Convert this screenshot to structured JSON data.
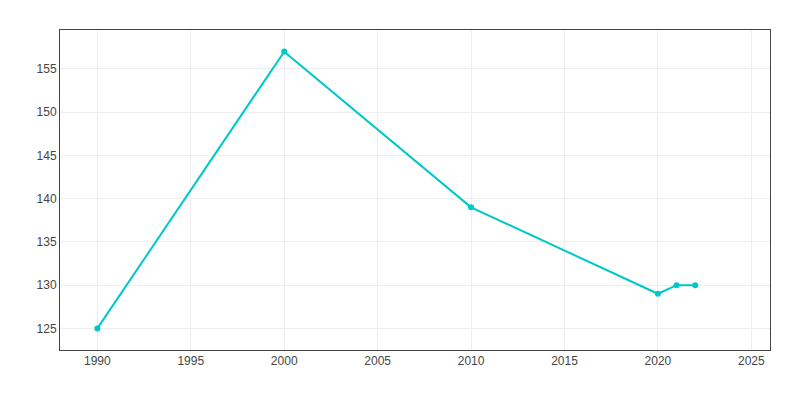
{
  "chart_data": {
    "type": "line",
    "x": [
      1990,
      2000,
      2010,
      2020,
      2021,
      2022
    ],
    "values": [
      125,
      157,
      139,
      129,
      130,
      130
    ],
    "color": "#00c8c8",
    "marker": "circle",
    "xlim": [
      1988,
      2026
    ],
    "ylim": [
      122.5,
      159.5
    ],
    "xticks": [
      1990,
      1995,
      2000,
      2005,
      2010,
      2015,
      2020,
      2025
    ],
    "yticks": [
      125,
      130,
      135,
      140,
      145,
      150,
      155
    ],
    "grid": true
  }
}
